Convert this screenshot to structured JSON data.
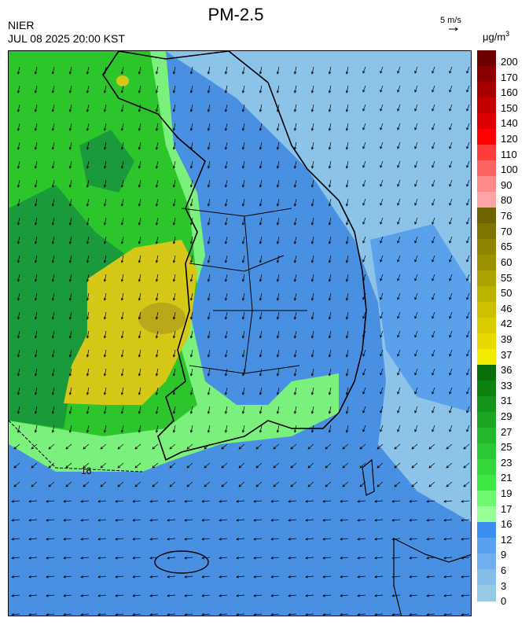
{
  "header": {
    "title": "PM-2.5",
    "agency": "NIER",
    "timestamp": "JUL 08 2025 20:00 KST",
    "wind_scale_label": "5 m/s",
    "unit_base": "μg/m",
    "unit_exp": "3"
  },
  "map": {
    "contour_label": "16",
    "colors": {
      "sea_far": "#8cc3e8",
      "sea_near": "#4a90e2",
      "blue_mid": "#5aa0ea",
      "light_green": "#7cf07c",
      "green": "#2cc62c",
      "dark_green": "#1a9a3a",
      "yellow": "#d6c818",
      "dark_yellow": "#b8a81a"
    },
    "wind_arrow_icon": "arrow-icon"
  },
  "legend": {
    "labels": [
      "200",
      "170",
      "160",
      "150",
      "140",
      "120",
      "110",
      "100",
      "90",
      "80",
      "76",
      "70",
      "65",
      "60",
      "55",
      "50",
      "46",
      "42",
      "39",
      "37",
      "36",
      "33",
      "31",
      "29",
      "27",
      "25",
      "23",
      "21",
      "19",
      "17",
      "16",
      "12",
      "9",
      "6",
      "3",
      "0"
    ],
    "colors": [
      "#6e0000",
      "#8a0000",
      "#a60000",
      "#c20000",
      "#de0000",
      "#ff0000",
      "#ff3c3c",
      "#ff6464",
      "#ff8888",
      "#ffa4a4",
      "#6b6400",
      "#7e7400",
      "#8e8400",
      "#9c9200",
      "#aca200",
      "#bcb200",
      "#ccc000",
      "#dacc00",
      "#e6da00",
      "#f2ea00",
      "#0a6e0a",
      "#0e8210",
      "#14941a",
      "#1aa622",
      "#22b82a",
      "#2ac832",
      "#34d83a",
      "#40e846",
      "#6cf870",
      "#96ff96",
      "#3c8ef0",
      "#5aa0f0",
      "#70b0f0",
      "#84bee8",
      "#98cae6"
    ]
  }
}
